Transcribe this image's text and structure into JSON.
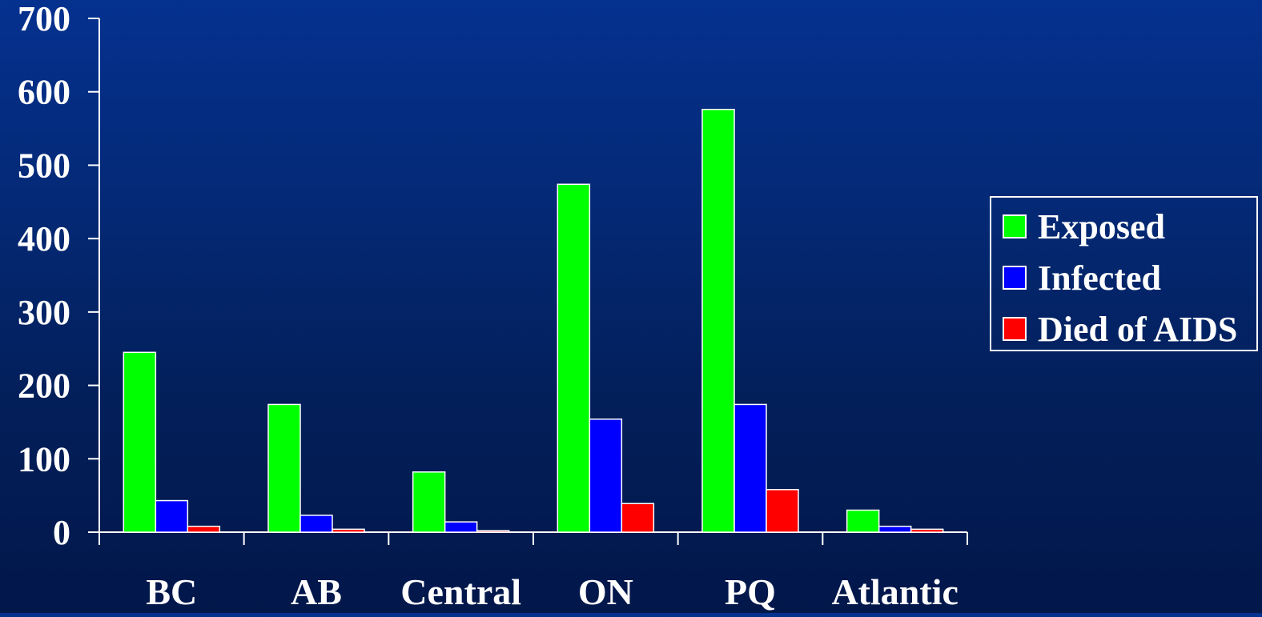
{
  "chart_data": {
    "type": "bar",
    "title": "",
    "xlabel": "",
    "ylabel": "",
    "ylim": [
      0,
      700
    ],
    "yticks": [
      0,
      100,
      200,
      300,
      400,
      500,
      600,
      700
    ],
    "categories": [
      "BC",
      "AB",
      "Central",
      "ON",
      "PQ",
      "Atlantic"
    ],
    "series": [
      {
        "name": "Exposed",
        "color": "#00ff00",
        "values": [
          245,
          174,
          82,
          474,
          576,
          30
        ]
      },
      {
        "name": "Infected",
        "color": "#0000ff",
        "values": [
          43,
          23,
          14,
          154,
          174,
          8
        ]
      },
      {
        "name": "Died of AIDS",
        "color": "#ff0000",
        "values": [
          8,
          4,
          2,
          39,
          58,
          4
        ]
      }
    ],
    "grid": false,
    "legend_position": "right"
  },
  "legend": {
    "items": [
      {
        "label": "Exposed",
        "color": "#00ff00"
      },
      {
        "label": "Infected",
        "color": "#0000ff"
      },
      {
        "label": "Died of AIDS",
        "color": "#ff0000"
      }
    ]
  }
}
